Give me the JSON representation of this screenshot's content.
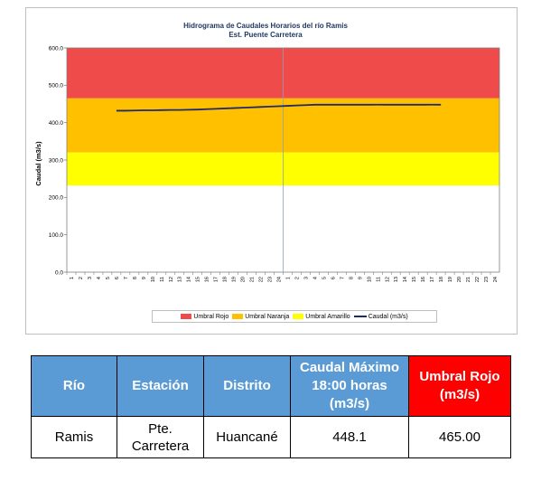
{
  "chart_data": {
    "type": "line",
    "title": "Hidrograma de Caudales Horarios del río Ramis",
    "subtitle": "Est. Puente Carretera",
    "ylabel": "Caudal (m3/s)",
    "ylim": [
      0,
      600
    ],
    "yticks": [
      "0.0",
      "100.0",
      "200.0",
      "300.0",
      "400.0",
      "500.0",
      "600.0"
    ],
    "xticks": [
      "1",
      "2",
      "3",
      "4",
      "5",
      "6",
      "7",
      "8",
      "9",
      "10",
      "11",
      "12",
      "13",
      "14",
      "15",
      "16",
      "17",
      "18",
      "19",
      "20",
      "21",
      "22",
      "23",
      "24",
      "1",
      "2",
      "3",
      "4",
      "5",
      "6",
      "7",
      "8",
      "9",
      "10",
      "11",
      "12",
      "13",
      "14",
      "15",
      "16",
      "17",
      "18",
      "19",
      "20",
      "21",
      "22",
      "23",
      "24"
    ],
    "divider_after_index": 23,
    "bands": [
      {
        "name": "Umbral Rojo",
        "from": 465,
        "to": 600,
        "color": "#f04b4b"
      },
      {
        "name": "Umbral Naranja",
        "from": 320,
        "to": 465,
        "color": "#ffc000"
      },
      {
        "name": "Umbral Amarillo",
        "from": 232,
        "to": 320,
        "color": "#ffff00"
      }
    ],
    "series": [
      {
        "name": "Caudal (m3/s)",
        "color": "#1f2a6b",
        "x_index": [
          5,
          6,
          7,
          8,
          9,
          10,
          11,
          12,
          13,
          14,
          15,
          16,
          17,
          18,
          19,
          20,
          21,
          22,
          23,
          24,
          25,
          26,
          27,
          28,
          29,
          30,
          31,
          32,
          33,
          34,
          35,
          36,
          37,
          38,
          39,
          40,
          41
        ],
        "values": [
          432,
          432,
          432.5,
          433,
          433,
          433.5,
          434,
          434,
          434.5,
          435,
          436,
          437,
          438,
          439,
          440,
          441,
          442,
          443,
          444,
          445,
          446,
          447,
          448,
          448,
          448,
          448,
          448,
          448,
          448,
          448.1,
          448,
          448,
          448,
          448,
          448,
          448.1,
          448
        ]
      }
    ],
    "legend": [
      "Umbral Rojo",
      "Umbral Naranja",
      "Umbral Amarillo",
      "Caudal (m3/s)"
    ],
    "legend_position": "bottom",
    "grid": false
  },
  "table": {
    "headers": [
      "Río",
      "Estación",
      "Distrito",
      "Caudal Máximo 18:00 horas (m3/s)",
      "Umbral Rojo (m3/s)"
    ],
    "rows": [
      [
        "Ramis",
        "Pte. Carretera",
        "Huancané",
        "448.1",
        "465.00"
      ]
    ]
  }
}
